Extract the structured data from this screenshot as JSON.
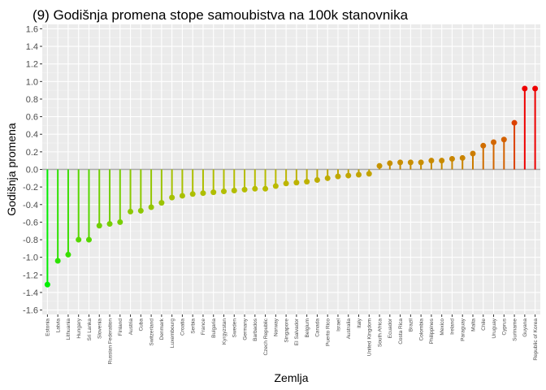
{
  "chart_data": {
    "type": "lollipop",
    "title": "(9) Godišnja promena stope samoubistva na 100k stanovnika",
    "xlabel": "Zemlja",
    "ylabel": "Godišnja promena",
    "ylim": [
      -1.65,
      1.65
    ],
    "yticks": [
      -1.6,
      -1.4,
      -1.2,
      -1.0,
      -0.8,
      -0.6,
      -0.4,
      -0.2,
      0.0,
      0.2,
      0.4,
      0.6,
      0.8,
      1.0,
      1.2,
      1.4,
      1.6
    ],
    "ytick_labels": [
      "-1.6",
      "-1.4",
      "-1.2",
      "-1.0",
      "-0.8",
      "-0.6",
      "-0.4",
      "-0.2",
      "0.0",
      "0.2",
      "0.4",
      "0.6",
      "0.8",
      "1.0",
      "1.2",
      "1.4",
      "1.6"
    ],
    "baseline": 0,
    "grid": true,
    "color_scale": {
      "low": "#00ee00",
      "mid": "#bbbb00",
      "high": "#ee0000"
    },
    "categories": [
      "Estonia",
      "Latvia",
      "Lithuania",
      "Hungary",
      "Sri Lanka",
      "Slovenia",
      "Russian Federation",
      "Finland",
      "Austria",
      "Cuba",
      "Switzerland",
      "Denmark",
      "Luxembourg",
      "Croatia",
      "Serbia",
      "France",
      "Bulgaria",
      "Kyrgyzstan",
      "Sweden",
      "Germany",
      "Barbados",
      "Czech Republic",
      "Norway",
      "Singapore",
      "El Salvador",
      "Belgium",
      "Canada",
      "Puerto Rico",
      "Israel",
      "Australia",
      "Italy",
      "United Kingdom",
      "South Africa",
      "Ecuador",
      "Costa Rica",
      "Brazil",
      "Colombia",
      "Philippines",
      "Mexico",
      "Ireland",
      "Paraguay",
      "Malta",
      "Chile",
      "Uruguay",
      "Cyprus",
      "Suriname",
      "Guyana",
      "Republic of Korea"
    ],
    "values": [
      -1.31,
      -1.04,
      -0.97,
      -0.8,
      -0.8,
      -0.64,
      -0.62,
      -0.6,
      -0.48,
      -0.47,
      -0.43,
      -0.38,
      -0.32,
      -0.3,
      -0.28,
      -0.27,
      -0.26,
      -0.25,
      -0.24,
      -0.23,
      -0.22,
      -0.22,
      -0.19,
      -0.16,
      -0.15,
      -0.14,
      -0.12,
      -0.1,
      -0.08,
      -0.07,
      -0.06,
      -0.05,
      0.04,
      0.07,
      0.08,
      0.08,
      0.08,
      0.1,
      0.1,
      0.12,
      0.13,
      0.18,
      0.27,
      0.31,
      0.34,
      0.53,
      0.92,
      0.92
    ]
  }
}
